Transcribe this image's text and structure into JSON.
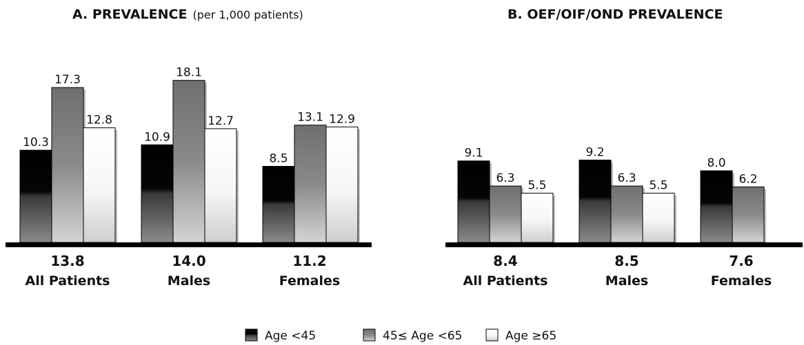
{
  "chart_data": [
    {
      "type": "bar",
      "title": "A. PREVALENCE",
      "subtitle": "(per 1,000 patients)",
      "categories": [
        "All Patients",
        "Males",
        "Females"
      ],
      "category_totals": [
        "13.8",
        "14.0",
        "11.2"
      ],
      "series": [
        {
          "name": "Age <45",
          "values": [
            10.3,
            10.9,
            8.5
          ]
        },
        {
          "name": "45≤ Age <65",
          "values": [
            17.3,
            18.1,
            13.1
          ]
        },
        {
          "name": "Age ≥65",
          "values": [
            12.8,
            12.7,
            12.9
          ]
        }
      ],
      "ylim": [
        0,
        20
      ],
      "grid": false,
      "legend": "bottom"
    },
    {
      "type": "bar",
      "title": "B. OEF/OIF/OND PREVALENCE",
      "categories": [
        "All Patients",
        "Males",
        "Females"
      ],
      "category_totals": [
        "8.4",
        "8.5",
        "7.6"
      ],
      "series": [
        {
          "name": "Age <45",
          "values": [
            9.1,
            9.2,
            8.0
          ]
        },
        {
          "name": "45≤ Age <65",
          "values": [
            6.3,
            6.3,
            6.2
          ]
        },
        {
          "name": "Age ≥65",
          "values": [
            5.5,
            5.5,
            null
          ]
        }
      ],
      "ylim": [
        0,
        20
      ],
      "grid": false,
      "legend": "bottom"
    }
  ],
  "legend": [
    {
      "label": "Age <45",
      "color": "#000000"
    },
    {
      "label": "45≤ Age <65",
      "color": "#7a7a7a"
    },
    {
      "label": "Age ≥65",
      "color": "#ffffff"
    }
  ]
}
